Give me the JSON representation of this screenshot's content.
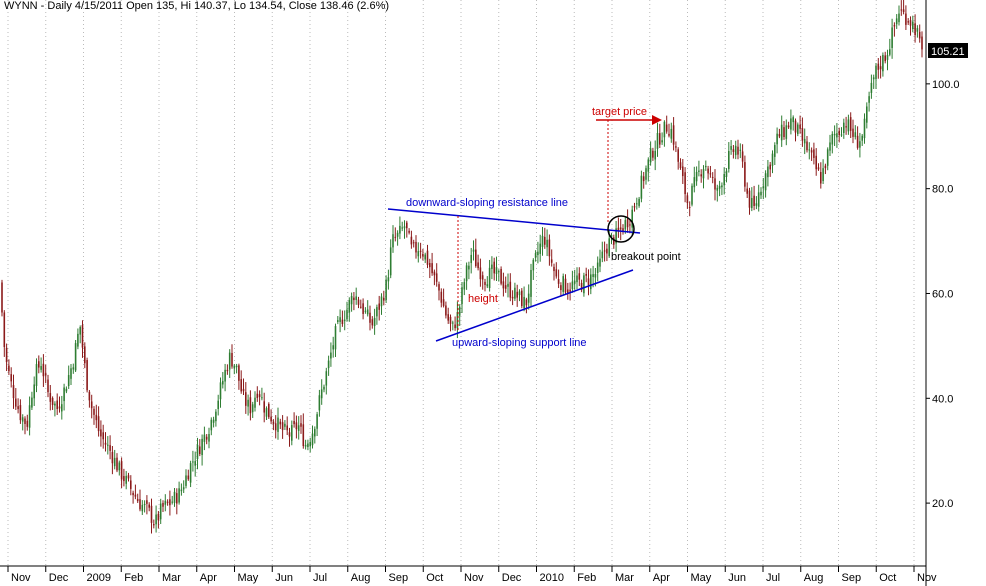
{
  "header": {
    "text": "WYNN - Daily 4/15/2011 Open 135, Hi 140.37, Lo 134.54, Close 138.46 (2.6%)"
  },
  "last_price_label": "105.21",
  "colors": {
    "up": "#2e7d32",
    "down": "#8b1a1a",
    "annotation_blue": "#0000cc",
    "annotation_red": "#cc0000",
    "grid": "#bbbbbb",
    "price_tag_bg": "#000000"
  },
  "annotations": {
    "resistance": "downward-sloping resistance line",
    "support": "upward-sloping support line",
    "height": "height",
    "target": "target price",
    "breakout": "breakout point"
  },
  "chart_data": {
    "type": "candlestick",
    "ticker": "WYNN",
    "y_ticks": [
      "20.0",
      "40.0",
      "60.0",
      "80.0",
      "100.0"
    ],
    "ylim": [
      8,
      116
    ],
    "grid": "vertical dotted at month starts",
    "x_tick_labels": [
      "Nov",
      "Dec",
      "2009",
      "Feb",
      "Mar",
      "Apr",
      "May",
      "Jun",
      "Jul",
      "Aug",
      "Sep",
      "Oct",
      "Nov",
      "Dec",
      "2010",
      "Feb",
      "Mar",
      "Apr",
      "May",
      "Jun",
      "Jul",
      "Aug",
      "Sep",
      "Oct",
      "Nov"
    ],
    "price_path": [
      [
        0,
        62
      ],
      [
        5,
        48
      ],
      [
        12,
        42
      ],
      [
        20,
        37
      ],
      [
        27,
        35
      ],
      [
        34,
        44
      ],
      [
        41,
        47
      ],
      [
        48,
        41
      ],
      [
        57,
        38
      ],
      [
        65,
        42
      ],
      [
        73,
        47
      ],
      [
        80,
        54
      ],
      [
        86,
        44
      ],
      [
        92,
        38
      ],
      [
        100,
        33
      ],
      [
        110,
        30
      ],
      [
        120,
        26
      ],
      [
        130,
        23
      ],
      [
        140,
        20
      ],
      [
        150,
        18
      ],
      [
        155,
        16
      ],
      [
        162,
        19
      ],
      [
        170,
        20
      ],
      [
        180,
        22
      ],
      [
        190,
        27
      ],
      [
        200,
        31
      ],
      [
        210,
        35
      ],
      [
        218,
        40
      ],
      [
        225,
        45
      ],
      [
        230,
        48
      ],
      [
        236,
        46
      ],
      [
        243,
        40
      ],
      [
        250,
        38
      ],
      [
        258,
        42
      ],
      [
        265,
        38
      ],
      [
        273,
        36
      ],
      [
        282,
        34
      ],
      [
        290,
        33
      ],
      [
        298,
        35
      ],
      [
        306,
        31
      ],
      [
        313,
        34
      ],
      [
        320,
        40
      ],
      [
        328,
        46
      ],
      [
        335,
        52
      ],
      [
        341,
        55
      ],
      [
        347,
        57
      ],
      [
        354,
        60
      ],
      [
        360,
        58
      ],
      [
        366,
        56
      ],
      [
        372,
        54
      ],
      [
        380,
        58
      ],
      [
        387,
        62
      ],
      [
        392,
        70
      ],
      [
        398,
        71
      ],
      [
        405,
        73
      ],
      [
        412,
        68
      ],
      [
        420,
        69
      ],
      [
        428,
        66
      ],
      [
        434,
        63
      ],
      [
        440,
        60
      ],
      [
        446,
        56
      ],
      [
        452,
        53
      ],
      [
        458,
        56
      ],
      [
        465,
        63
      ],
      [
        472,
        68
      ],
      [
        478,
        65
      ],
      [
        485,
        63
      ],
      [
        492,
        64
      ],
      [
        500,
        63
      ],
      [
        507,
        61
      ],
      [
        514,
        60
      ],
      [
        520,
        59
      ],
      [
        526,
        58
      ],
      [
        532,
        64
      ],
      [
        538,
        68
      ],
      [
        544,
        71
      ],
      [
        550,
        67
      ],
      [
        556,
        63
      ],
      [
        562,
        62
      ],
      [
        568,
        61
      ],
      [
        575,
        62
      ],
      [
        582,
        62
      ],
      [
        590,
        63
      ],
      [
        597,
        64
      ],
      [
        604,
        68
      ],
      [
        610,
        70
      ],
      [
        617,
        71
      ],
      [
        624,
        73
      ],
      [
        631,
        75
      ],
      [
        638,
        79
      ],
      [
        645,
        83
      ],
      [
        652,
        87
      ],
      [
        660,
        90
      ],
      [
        667,
        92
      ],
      [
        672,
        91
      ],
      [
        676,
        87
      ],
      [
        682,
        82
      ],
      [
        688,
        77
      ],
      [
        693,
        80
      ],
      [
        699,
        83
      ],
      [
        705,
        85
      ],
      [
        711,
        82
      ],
      [
        717,
        79
      ],
      [
        722,
        82
      ],
      [
        729,
        86
      ],
      [
        736,
        88
      ],
      [
        742,
        85
      ],
      [
        748,
        78
      ],
      [
        754,
        76
      ],
      [
        760,
        80
      ],
      [
        766,
        83
      ],
      [
        772,
        86
      ],
      [
        778,
        90
      ],
      [
        784,
        91
      ],
      [
        791,
        93
      ],
      [
        797,
        91
      ],
      [
        803,
        89
      ],
      [
        809,
        87
      ],
      [
        815,
        84
      ],
      [
        821,
        82
      ],
      [
        827,
        86
      ],
      [
        833,
        90
      ],
      [
        839,
        91
      ],
      [
        845,
        93
      ],
      [
        851,
        91
      ],
      [
        857,
        89
      ],
      [
        863,
        90
      ],
      [
        869,
        97
      ],
      [
        875,
        102
      ],
      [
        881,
        104
      ],
      [
        887,
        106
      ],
      [
        893,
        110
      ],
      [
        899,
        114
      ],
      [
        905,
        113
      ],
      [
        911,
        112
      ],
      [
        917,
        110
      ],
      [
        921,
        106
      ],
      [
        925,
        105
      ]
    ]
  }
}
